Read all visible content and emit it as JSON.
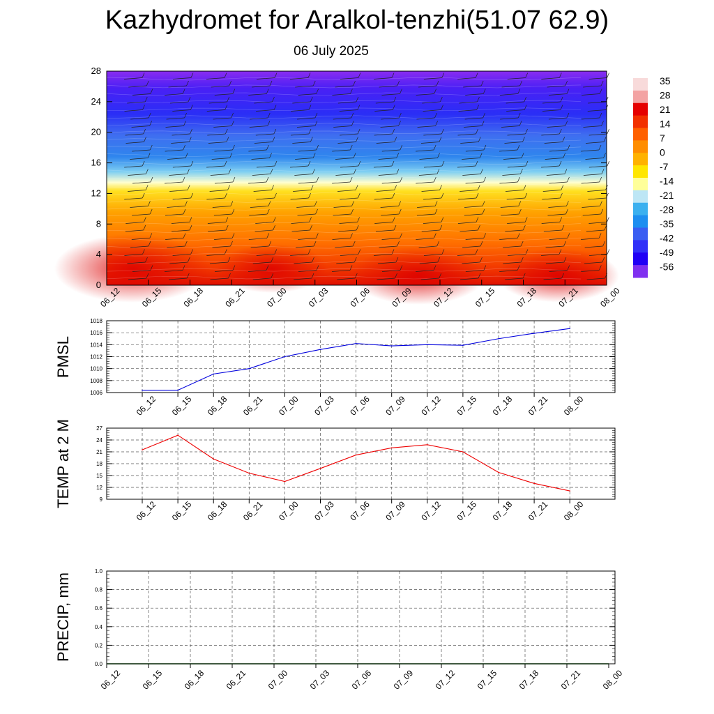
{
  "header": {
    "title": "Kazhydromet for Aralkol-tenzhi(51.07 62.9)",
    "subtitle": "06 July 2025"
  },
  "chart_data": [
    {
      "type": "heatmap",
      "name": "temperature-wind-profile",
      "x_ticks": [
        "06_12",
        "06_15",
        "06_18",
        "06_21",
        "07_00",
        "07_03",
        "07_06",
        "07_09",
        "07_12",
        "07_15",
        "07_18",
        "07_21",
        "08_00"
      ],
      "y_ticks": [
        0,
        4,
        8,
        12,
        16,
        20,
        24,
        28
      ],
      "ylim": [
        0,
        28
      ],
      "colorbar_labels": [
        "35",
        "28",
        "21",
        "14",
        "7",
        "0",
        "-7",
        "-14",
        "-21",
        "-28",
        "-35",
        "-42",
        "-49",
        "-56"
      ],
      "colorbar_colors": [
        "#f8dada",
        "#f3a3a3",
        "#e50000",
        "#f23000",
        "#ff6000",
        "#ff8d00",
        "#ffb200",
        "#ffe600",
        "#ffff99",
        "#bde6f5",
        "#3bb0ef",
        "#1e8ef0",
        "#3a5ef2",
        "#3030f8",
        "#2000f5",
        "#8030f0"
      ],
      "grid": false
    },
    {
      "type": "line",
      "name": "pmsl",
      "ylabel": "PMSL",
      "categories": [
        "06_12",
        "06_15",
        "06_18",
        "06_21",
        "07_00",
        "07_03",
        "07_06",
        "07_09",
        "07_12",
        "07_15",
        "07_18",
        "07_21",
        "08_00"
      ],
      "values": [
        1006.4,
        1006.4,
        1009.1,
        1010.0,
        1012.0,
        1013.2,
        1014.2,
        1013.8,
        1014.0,
        1013.9,
        1015.0,
        1015.9,
        1016.7
      ],
      "ylim": [
        1006,
        1018
      ],
      "y_ticks": [
        1006,
        1008,
        1010,
        1012,
        1014,
        1016,
        1018
      ],
      "color": "#0000dd",
      "grid": true
    },
    {
      "type": "line",
      "name": "temp2m",
      "ylabel": "TEMP at 2 M",
      "categories": [
        "06_12",
        "06_15",
        "06_18",
        "06_21",
        "07_00",
        "07_03",
        "07_06",
        "07_09",
        "07_12",
        "07_15",
        "07_18",
        "07_21",
        "08_00"
      ],
      "values": [
        21.5,
        25.2,
        19.2,
        15.6,
        13.5,
        16.8,
        20.2,
        22.0,
        22.8,
        21.0,
        15.8,
        13.0,
        11.1
      ],
      "ylim": [
        9,
        27
      ],
      "y_ticks": [
        9,
        12,
        15,
        18,
        21,
        24,
        27
      ],
      "color": "#ee0000",
      "grid": true
    },
    {
      "type": "line",
      "name": "precip",
      "ylabel": "PRECIP, mm",
      "categories": [
        "06_12",
        "06_15",
        "06_18",
        "06_21",
        "07_00",
        "07_03",
        "07_06",
        "07_09",
        "07_12",
        "07_15",
        "07_18",
        "07_21",
        "08_00"
      ],
      "values": [
        0,
        0,
        0,
        0,
        0,
        0,
        0,
        0,
        0,
        0,
        0,
        0,
        0
      ],
      "ylim": [
        0,
        1.0
      ],
      "y_ticks": [
        "0.0",
        "0.2",
        "0.4",
        "0.6",
        "0.8",
        "1.0"
      ],
      "color": "#006600",
      "grid": true
    }
  ]
}
